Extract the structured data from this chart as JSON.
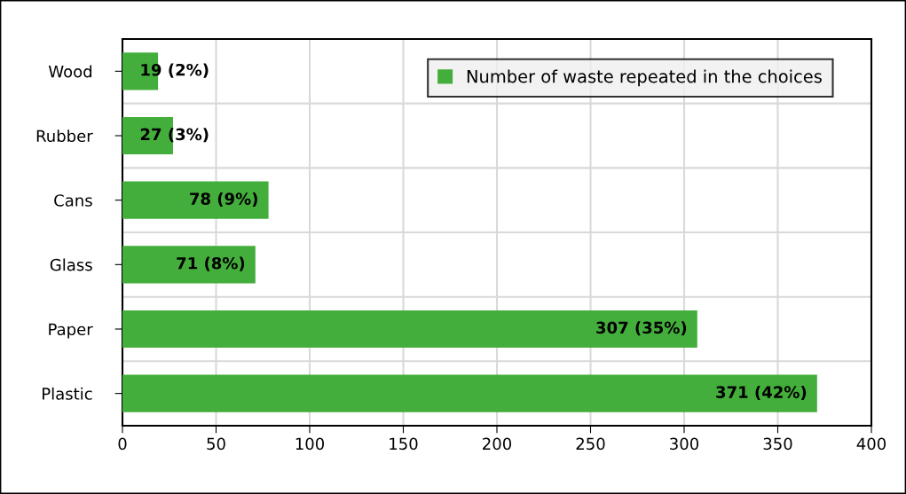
{
  "chart_data": {
    "type": "bar",
    "orientation": "horizontal",
    "categories": [
      "Wood",
      "Rubber",
      "Cans",
      "Glass",
      "Paper",
      "Plastic"
    ],
    "series": [
      {
        "name": "Number of waste repeated in the choices",
        "color": "#43ae3b",
        "values": [
          19,
          27,
          78,
          71,
          307,
          371
        ],
        "value_labels": [
          "19 (2%)",
          "27 (3%)",
          "78 (9%)",
          "71 (8%)",
          "307 (35%)",
          "371 (42%)"
        ]
      }
    ],
    "xlim": [
      0,
      400
    ],
    "xticks": [
      0,
      50,
      100,
      150,
      200,
      250,
      300,
      350,
      400
    ],
    "grid": true,
    "legend": "top right"
  }
}
